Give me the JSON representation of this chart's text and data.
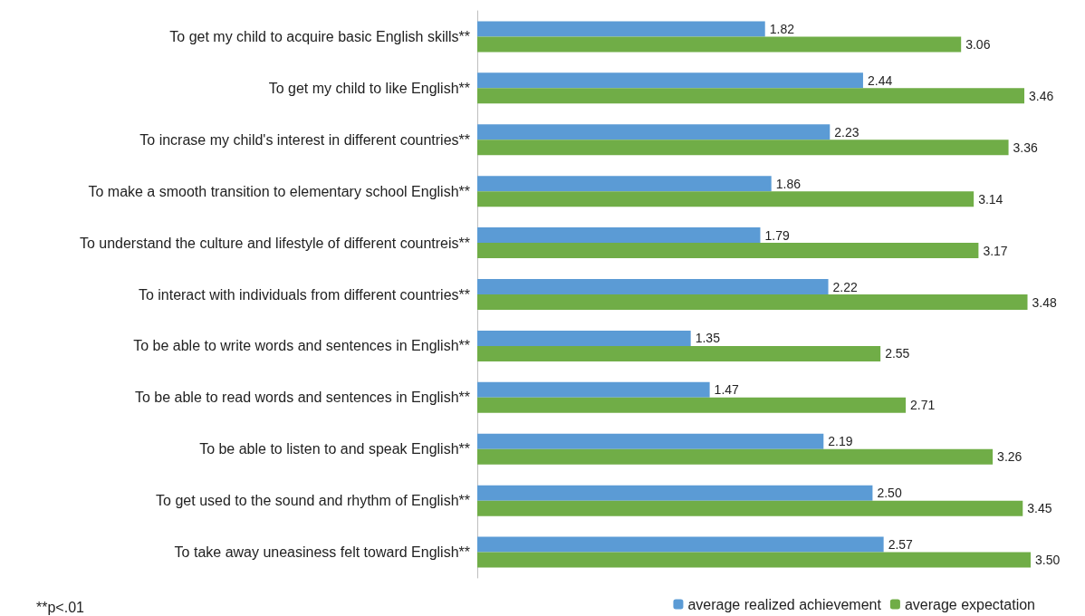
{
  "chart_data": {
    "type": "bar",
    "orientation": "horizontal",
    "legend": "bottom right",
    "categories": [
      "To get my child to acquire basic English skills**",
      "To get my child to like English**",
      "To incrase my child's interest in different countries**",
      "To make a smooth transition to elementary school English**",
      "To understand the culture and lifestyle of different countreis**",
      "To interact with individuals from different countries**",
      "To be able to write words and sentences in English**",
      "To be able to read words and sentences in English**",
      "To be able to listen to and speak English**",
      "To get used to the sound and rhythm of English**",
      "To take away uneasiness felt toward English**"
    ],
    "series": [
      {
        "name": "average realized achievement",
        "color": "#5b9bd5",
        "values": [
          1.82,
          2.44,
          2.23,
          1.86,
          1.79,
          2.22,
          1.35,
          1.47,
          2.19,
          2.5,
          2.57
        ],
        "value_labels": [
          "1.82",
          "2.44",
          "2.23",
          "1.86",
          "1.79",
          "2.22",
          "1.35",
          "1.47",
          "2.19",
          "2.50",
          "2.57"
        ]
      },
      {
        "name": "average expectation",
        "color": "#70ad47",
        "values": [
          3.06,
          3.46,
          3.36,
          3.14,
          3.17,
          3.48,
          2.55,
          2.71,
          3.26,
          3.45,
          3.5
        ],
        "value_labels": [
          "3.06",
          "3.46",
          "3.36",
          "3.14",
          "3.17",
          "3.48",
          "2.55",
          "2.71",
          "3.26",
          "3.45",
          "3.50"
        ]
      }
    ],
    "annotations": [
      "**p<.01"
    ]
  }
}
